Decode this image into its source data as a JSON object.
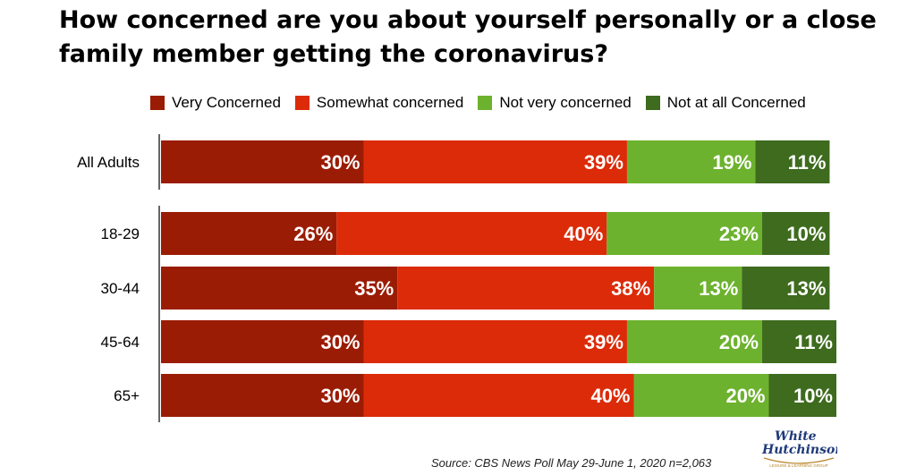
{
  "chart_data": {
    "type": "bar",
    "orientation": "horizontal",
    "stacked": true,
    "title": "How concerned are you about yourself personally or a close family member getting the coronavirus?",
    "categories": [
      "All Adults",
      "18-29",
      "30-44",
      "45-64",
      "65+"
    ],
    "series": [
      {
        "name": "Very Concerned",
        "color": "#9b1c04",
        "values": [
          30,
          26,
          35,
          30,
          30
        ]
      },
      {
        "name": "Somewhat concerned",
        "color": "#dc2b08",
        "values": [
          39,
          40,
          38,
          39,
          40
        ]
      },
      {
        "name": "Not very concerned",
        "color": "#6db22e",
        "values": [
          19,
          23,
          13,
          20,
          20
        ]
      },
      {
        "name": "Not at all Concerned",
        "color": "#3e6b1e",
        "values": [
          11,
          10,
          13,
          11,
          10
        ]
      }
    ],
    "value_suffix": "%",
    "legend_position": "top",
    "grid": false
  },
  "source": "Source: CBS News Poll May 29-June 1, 2020 n=2,063",
  "logo": {
    "line1": "White",
    "line2": "Hutchinson",
    "tagline": "LEISURE & LEARNING GROUP"
  }
}
